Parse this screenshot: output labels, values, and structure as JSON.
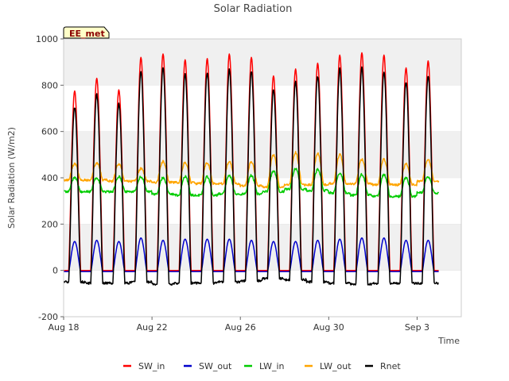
{
  "chart_data": {
    "type": "line",
    "title": "Solar Radiation",
    "xlabel": "Time",
    "ylabel": "Solar Radiation (W/m2)",
    "badge": "EE_met",
    "x_ticks": [
      "Aug 18",
      "Aug 22",
      "Aug 26",
      "Aug 30",
      "Sep 3"
    ],
    "y_ticks": [
      -200,
      0,
      200,
      400,
      600,
      800,
      1000
    ],
    "ylim": [
      -200,
      1000
    ],
    "xlim": [
      "2018-08-18",
      "2018-09-05"
    ],
    "grid": "horizontal bands",
    "legend_position": "bottom",
    "day_start": [
      "2018-08-18",
      "2018-08-19",
      "2018-08-20",
      "2018-08-21",
      "2018-08-22",
      "2018-08-23",
      "2018-08-24",
      "2018-08-25",
      "2018-08-26",
      "2018-08-27",
      "2018-08-28",
      "2018-08-29",
      "2018-08-30",
      "2018-08-31",
      "2018-09-01",
      "2018-09-02",
      "2018-09-03",
      "2018-09-04"
    ],
    "series": [
      {
        "name": "SW_in",
        "color": "#ff0000",
        "daily_peak": [
          775,
          830,
          780,
          920,
          935,
          910,
          915,
          935,
          920,
          840,
          870,
          895,
          930,
          940,
          930,
          875,
          905
        ],
        "night": 0
      },
      {
        "name": "SW_out",
        "color": "#0000cc",
        "daily_peak": [
          125,
          130,
          125,
          140,
          130,
          135,
          135,
          135,
          130,
          125,
          125,
          130,
          135,
          140,
          140,
          130,
          130
        ],
        "night": -5
      },
      {
        "name": "LW_in",
        "color": "#00cc00",
        "daily_peak": [
          400,
          400,
          405,
          405,
          400,
          405,
          405,
          410,
          410,
          430,
          440,
          435,
          420,
          415,
          415,
          400,
          405
        ],
        "night": [
          340,
          340,
          340,
          340,
          330,
          325,
          325,
          330,
          330,
          340,
          350,
          345,
          335,
          325,
          320,
          320,
          335
        ]
      },
      {
        "name": "LW_out",
        "color": "#ffa500",
        "daily_peak": [
          460,
          465,
          460,
          440,
          470,
          465,
          465,
          470,
          470,
          500,
          510,
          505,
          500,
          480,
          480,
          460,
          480
        ],
        "night": [
          390,
          390,
          385,
          385,
          380,
          380,
          375,
          375,
          365,
          360,
          370,
          370,
          375,
          375,
          370,
          370,
          385
        ]
      },
      {
        "name": "Rnet",
        "color": "#000000",
        "daily_peak": [
          705,
          760,
          720,
          860,
          875,
          850,
          855,
          870,
          860,
          780,
          815,
          840,
          870,
          875,
          860,
          815,
          840
        ],
        "night": [
          -50,
          -55,
          -55,
          -50,
          -60,
          -55,
          -55,
          -50,
          -45,
          -35,
          -40,
          -50,
          -55,
          -60,
          -55,
          -55,
          -55
        ]
      }
    ]
  }
}
